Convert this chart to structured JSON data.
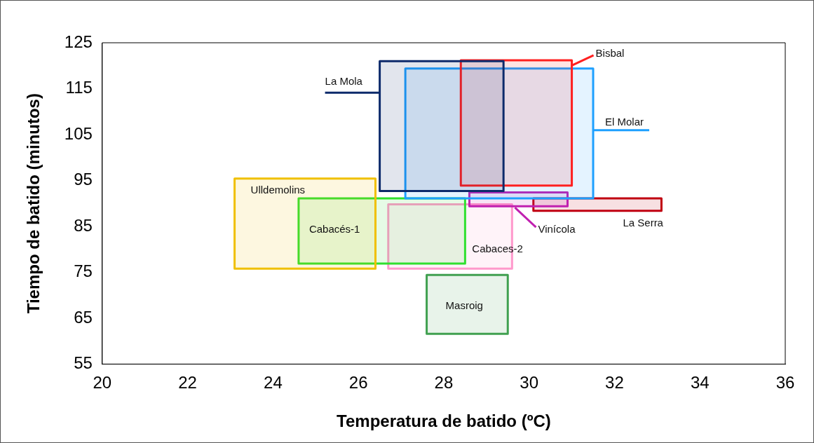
{
  "chart_data": {
    "type": "area",
    "xlabel": "Temperatura de batido (ºC)",
    "ylabel": "Tiempo de batido (minutos)",
    "xlim": [
      20,
      36
    ],
    "xticks": [
      20,
      22,
      24,
      26,
      28,
      30,
      32,
      34,
      36
    ],
    "ylim": [
      55,
      125
    ],
    "yticks": [
      55,
      65,
      75,
      85,
      95,
      105,
      115,
      125
    ],
    "grid": false,
    "legend": false,
    "marker": "none",
    "line_style": "solid",
    "series": [
      {
        "name": "La Mola",
        "color": "#0d2a6b",
        "x": [
          26.5,
          29.4,
          29.4,
          26.5,
          26.5
        ],
        "values": [
          92.7,
          92.7,
          121,
          121,
          92.7
        ]
      },
      {
        "name": "Bisbal",
        "color": "#ff2020",
        "x": [
          28.4,
          31.0,
          31.0,
          28.4,
          28.4
        ],
        "values": [
          93.9,
          93.9,
          121.2,
          121.2,
          93.9
        ]
      },
      {
        "name": "El Molar",
        "color": "#1ea0ff",
        "x": [
          27.1,
          31.5,
          31.5,
          27.1,
          27.1
        ],
        "values": [
          91.1,
          91.1,
          119.4,
          119.4,
          91.1
        ]
      },
      {
        "name": "Vinícola",
        "color": "#c020b0",
        "x": [
          28.6,
          30.9,
          30.9,
          28.6,
          28.6
        ],
        "values": [
          89.4,
          89.4,
          92.4,
          92.4,
          89.4
        ]
      },
      {
        "name": "La Serra",
        "color": "#c00010",
        "x": [
          30.1,
          33.1,
          33.1,
          30.1,
          30.1
        ],
        "values": [
          88.4,
          88.4,
          91.1,
          91.1,
          88.4
        ]
      },
      {
        "name": "Ulldemolins",
        "color": "#f0c000",
        "x": [
          23.1,
          26.4,
          26.4,
          23.1,
          23.1
        ],
        "values": [
          75.8,
          75.8,
          95.4,
          95.4,
          75.8
        ]
      },
      {
        "name": "Cabacés-1",
        "color": "#30e030",
        "x": [
          24.6,
          28.5,
          28.5,
          24.6,
          24.6
        ],
        "values": [
          76.9,
          76.9,
          91.1,
          91.1,
          76.9
        ]
      },
      {
        "name": "Cabaces-2",
        "color": "#ff99cc",
        "x": [
          26.7,
          29.6,
          29.6,
          26.7,
          26.7
        ],
        "values": [
          75.8,
          75.8,
          89.8,
          89.8,
          75.8
        ]
      },
      {
        "name": "Masroig",
        "color": "#40a050",
        "x": [
          27.6,
          29.5,
          29.5,
          27.6,
          27.6
        ],
        "values": [
          61.6,
          61.6,
          74.4,
          74.4,
          61.6
        ]
      }
    ]
  }
}
